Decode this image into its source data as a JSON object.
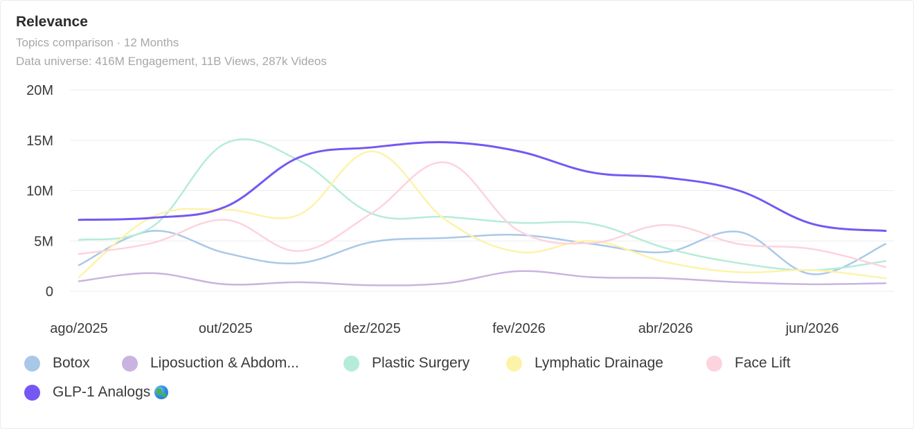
{
  "header": {
    "title": "Relevance",
    "subtitle": "Topics comparison · 12 Months",
    "universe": "Data universe: 416M Engagement, 11B Views, 287k Videos"
  },
  "chart_data": {
    "type": "line",
    "ylim": [
      0,
      20000000
    ],
    "y_ticks": [
      {
        "value": 0,
        "label": "0"
      },
      {
        "value": 5000000,
        "label": "5M"
      },
      {
        "value": 10000000,
        "label": "10M"
      },
      {
        "value": 15000000,
        "label": "15M"
      },
      {
        "value": 20000000,
        "label": "20M"
      }
    ],
    "x_tick_labels": [
      "ago/2025",
      "out/2025",
      "dez/2025",
      "fev/2026",
      "abr/2026",
      "jun/2026"
    ],
    "x": [
      "ago/2025",
      "set/2025",
      "out/2025",
      "nov/2025",
      "dez/2025",
      "jan/2026",
      "fev/2026",
      "mar/2026",
      "abr/2026",
      "mai/2026",
      "jun/2026",
      "jul/2026"
    ],
    "grid": true,
    "legend_position": "bottom-left",
    "series": [
      {
        "name": "Botox",
        "color": "#a9c8e8",
        "values": [
          2600000,
          6000000,
          3800000,
          2800000,
          4900000,
          5300000,
          5600000,
          4700000,
          3900000,
          5900000,
          1700000,
          4700000
        ]
      },
      {
        "name": "Liposuction & Abdom...",
        "color": "#c9b3e0",
        "values": [
          1000000,
          1800000,
          700000,
          900000,
          600000,
          800000,
          2000000,
          1400000,
          1300000,
          900000,
          700000,
          800000
        ]
      },
      {
        "name": "Plastic Surgery",
        "color": "#b5ecd9",
        "values": [
          5100000,
          6400000,
          14700000,
          13000000,
          7700000,
          7400000,
          6800000,
          6700000,
          4300000,
          2800000,
          2100000,
          3000000
        ]
      },
      {
        "name": "Lymphatic Drainage",
        "color": "#fdf3a8",
        "values": [
          1400000,
          7400000,
          8100000,
          7600000,
          13900000,
          7100000,
          3900000,
          5000000,
          2900000,
          1900000,
          2100000,
          1300000
        ]
      },
      {
        "name": "Face Lift",
        "color": "#fdd3de",
        "values": [
          3700000,
          4800000,
          7100000,
          4000000,
          7800000,
          12800000,
          6000000,
          4800000,
          6600000,
          4700000,
          4200000,
          2400000
        ]
      },
      {
        "name": "GLP-1 Analogs",
        "color": "#7557f3",
        "values": [
          7100000,
          7300000,
          8400000,
          13300000,
          14300000,
          14800000,
          13900000,
          11800000,
          11300000,
          10000000,
          6700000,
          6000000
        ]
      }
    ]
  }
}
